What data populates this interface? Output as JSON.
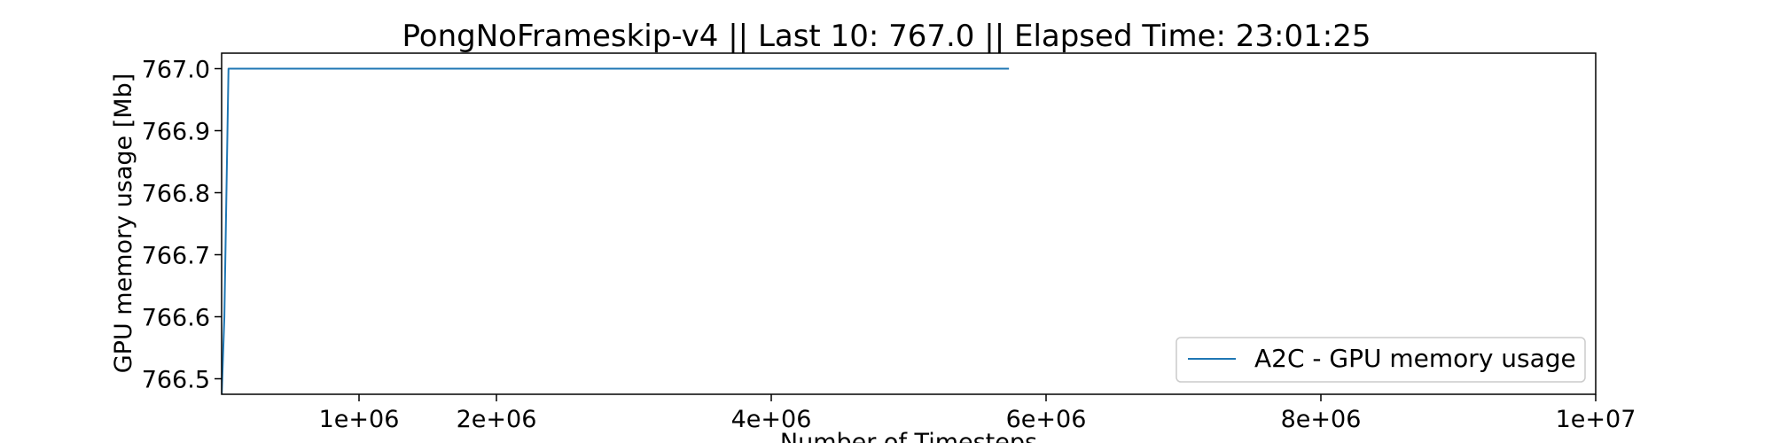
{
  "chart_data": {
    "type": "line",
    "title": "PongNoFrameskip-v4 || Last 10: 767.0 || Elapsed Time: 23:01:25",
    "xlabel": "Number of Timesteps",
    "ylabel": "GPU memory usage [Mb]",
    "xlim": [
      0,
      10000000
    ],
    "ylim": [
      766.475,
      767.025
    ],
    "x_ticks": [
      1000000,
      2000000,
      4000000,
      6000000,
      8000000,
      10000000
    ],
    "x_tick_labels": [
      "1e+06",
      "2e+06",
      "4e+06",
      "6e+06",
      "8e+06",
      "1e+07"
    ],
    "y_ticks": [
      766.5,
      766.6,
      766.7,
      766.8,
      766.9,
      767.0
    ],
    "y_tick_labels": [
      "766.5",
      "766.6",
      "766.7",
      "766.8",
      "766.9",
      "767.0"
    ],
    "grid": false,
    "legend_position": "lower-right",
    "series": [
      {
        "name": "A2C - GPU memory usage",
        "color": "#1f77b4",
        "x": [
          0,
          20000,
          50000,
          5730000
        ],
        "y": [
          766.47,
          766.6,
          767.0,
          767.0
        ]
      }
    ]
  }
}
